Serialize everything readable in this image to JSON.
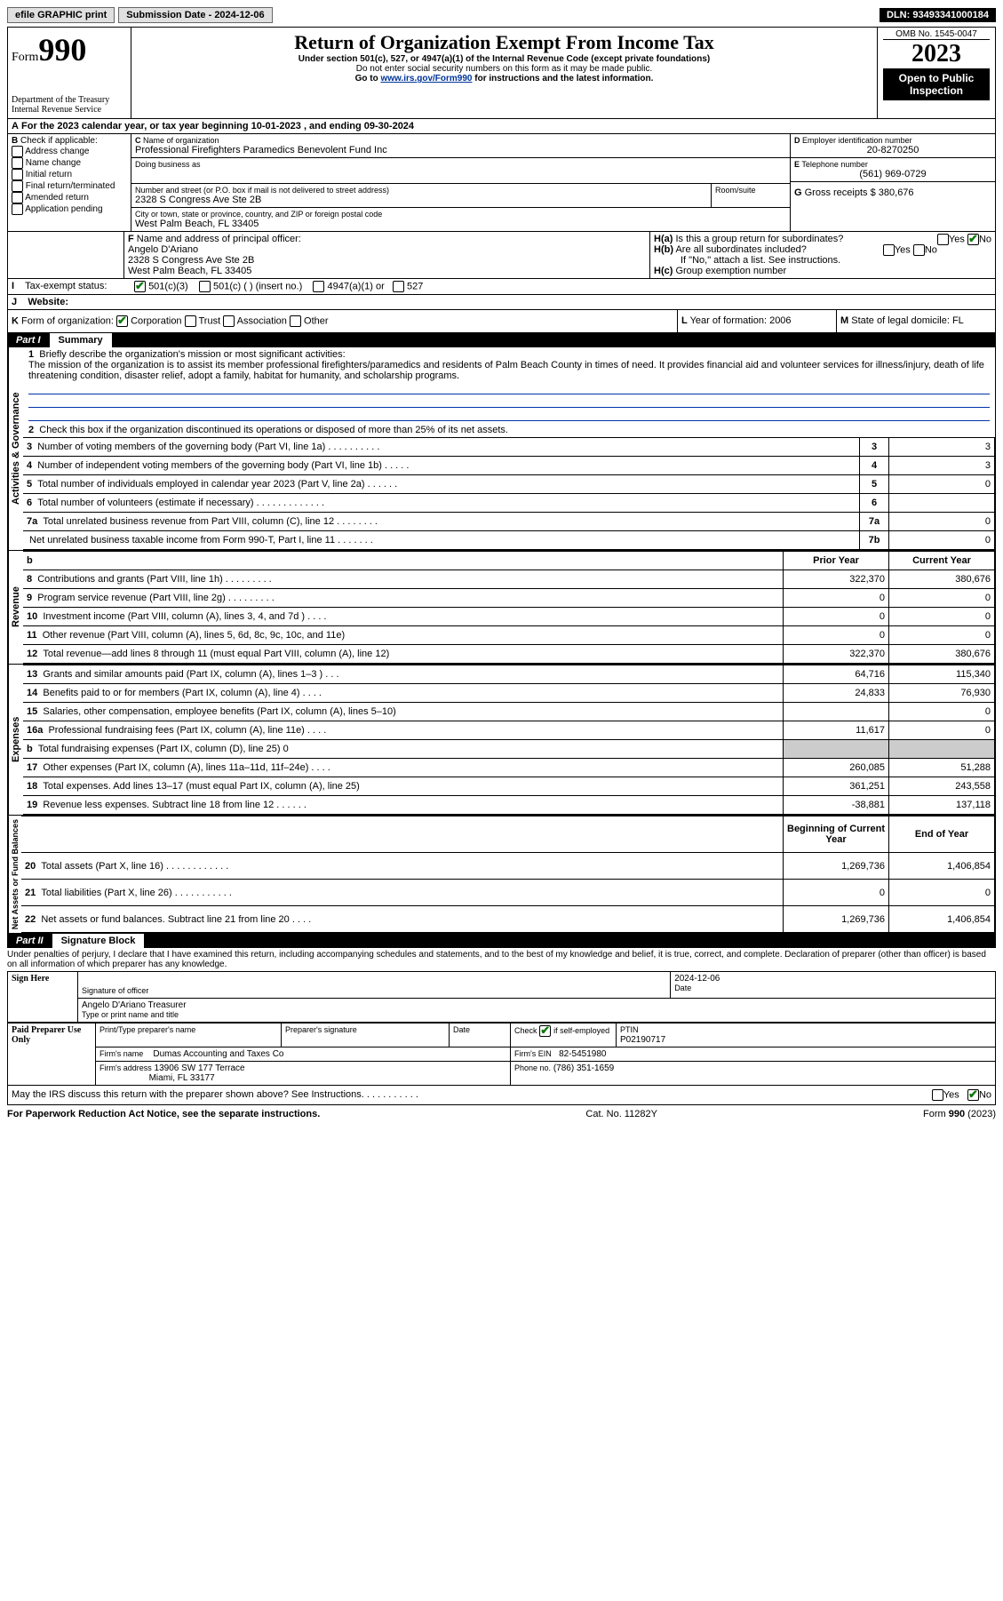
{
  "topbar": {
    "efile": "efile GRAPHIC print",
    "subdate_label": "Submission Date - 2024-12-06",
    "dln": "DLN: 93493341000184"
  },
  "header": {
    "form_label": "Form",
    "form_num": "990",
    "title": "Return of Organization Exempt From Income Tax",
    "sub1": "Under section 501(c), 527, or 4947(a)(1) of the Internal Revenue Code (except private foundations)",
    "sub2": "Do not enter social security numbers on this form as it may be made public.",
    "sub3_pre": "Go to ",
    "sub3_link": "www.irs.gov/Form990",
    "sub3_post": " for instructions and the latest information.",
    "dept": "Department of the Treasury\nInternal Revenue Service",
    "omb": "OMB No. 1545-0047",
    "year": "2023",
    "open": "Open to Public Inspection"
  },
  "A": {
    "line": "For the 2023 calendar year, or tax year beginning 10-01-2023   , and ending 09-30-2024"
  },
  "B": {
    "label": "Check if applicable:",
    "items": [
      "Address change",
      "Name change",
      "Initial return",
      "Final return/terminated",
      "Amended return",
      "Application pending"
    ]
  },
  "C": {
    "name_label": "Name of organization",
    "name": "Professional Firefighters Paramedics Benevolent Fund Inc",
    "dba_label": "Doing business as",
    "addr_label": "Number and street (or P.O. box if mail is not delivered to street address)",
    "room_label": "Room/suite",
    "addr": "2328 S Congress Ave Ste 2B",
    "city_label": "City or town, state or province, country, and ZIP or foreign postal code",
    "city": "West Palm Beach, FL  33405"
  },
  "D": {
    "label": "Employer identification number",
    "val": "20-8270250"
  },
  "E": {
    "label": "Telephone number",
    "val": "(561) 969-0729"
  },
  "G": {
    "label": "Gross receipts $",
    "val": "380,676"
  },
  "F": {
    "label": "Name and address of principal officer:",
    "name": "Angelo D'Ariano",
    "l1": "2328 S Congress Ave Ste 2B",
    "l2": "West Palm Beach, FL  33405"
  },
  "H": {
    "a": "Is this a group return for subordinates?",
    "b": "Are all subordinates included?",
    "b_note": "If \"No,\" attach a list. See instructions.",
    "c": "Group exemption number",
    "yes": "Yes",
    "no": "No"
  },
  "I": {
    "label": "Tax-exempt status:",
    "o1": "501(c)(3)",
    "o2": "501(c) (  ) (insert no.)",
    "o3": "4947(a)(1) or",
    "o4": "527"
  },
  "J": {
    "label": "Website:"
  },
  "K": {
    "label": "Form of organization:",
    "o1": "Corporation",
    "o2": "Trust",
    "o3": "Association",
    "o4": "Other"
  },
  "L": {
    "label": "Year of formation: 2006"
  },
  "M": {
    "label": "State of legal domicile: FL"
  },
  "part1": {
    "num": "Part I",
    "title": "Summary"
  },
  "sides": {
    "gov": "Activities & Governance",
    "rev": "Revenue",
    "exp": "Expenses",
    "net": "Net Assets or Fund Balances"
  },
  "s1": {
    "q1": "Briefly describe the organization's mission or most significant activities:",
    "mission": "The mission of the organization is to assist its member professional firefighters/paramedics and residents of Palm Beach County in times of need. It provides financial aid and volunteer services for illness/injury, death of life threatening condition, disaster relief, adopt a family, habitat for humanity, and scholarship programs.",
    "q2": "Check this box       if the organization discontinued its operations or disposed of more than 25% of its net assets.",
    "rows": [
      {
        "n": "3",
        "t": "Number of voting members of the governing body (Part VI, line 1a)   .    .    .    .    .    .    .    .    .    .",
        "lab": "3",
        "v": "3"
      },
      {
        "n": "4",
        "t": "Number of independent voting members of the governing body (Part VI, line 1b)    .    .    .    .    .",
        "lab": "4",
        "v": "3"
      },
      {
        "n": "5",
        "t": "Total number of individuals employed in calendar year 2023 (Part V, line 2a)  .    .    .    .    .    .",
        "lab": "5",
        "v": "0"
      },
      {
        "n": "6",
        "t": "Total number of volunteers (estimate if necessary)   .    .    .    .    .    .    .    .    .    .    .    .    .",
        "lab": "6",
        "v": ""
      },
      {
        "n": "7a",
        "t": "Total unrelated business revenue from Part VIII, column (C), line 12   .    .    .    .    .    .    .    .",
        "lab": "7a",
        "v": "0"
      },
      {
        "n": "",
        "t": "Net unrelated business taxable income from Form 990-T, Part I, line 11   .    .    .    .    .    .    .",
        "lab": "7b",
        "v": "0"
      }
    ]
  },
  "cols": {
    "prior": "Prior Year",
    "curr": "Current Year",
    "beg": "Beginning of Current Year",
    "end": "End of Year"
  },
  "rev": [
    {
      "n": "8",
      "t": "Contributions and grants (Part VIII, line 1h)    .    .    .    .    .    .    .    .    .",
      "p": "322,370",
      "c": "380,676"
    },
    {
      "n": "9",
      "t": "Program service revenue (Part VIII, line 2g)   .    .    .    .    .    .    .    .    .",
      "p": "0",
      "c": "0"
    },
    {
      "n": "10",
      "t": "Investment income (Part VIII, column (A), lines 3, 4, and 7d )   .    .    .    .",
      "p": "0",
      "c": "0"
    },
    {
      "n": "11",
      "t": "Other revenue (Part VIII, column (A), lines 5, 6d, 8c, 9c, 10c, and 11e)",
      "p": "0",
      "c": "0"
    },
    {
      "n": "12",
      "t": "Total revenue—add lines 8 through 11 (must equal Part VIII, column (A), line 12)",
      "p": "322,370",
      "c": "380,676"
    }
  ],
  "exp": [
    {
      "n": "13",
      "t": "Grants and similar amounts paid (Part IX, column (A), lines 1–3 )    .    .    .",
      "p": "64,716",
      "c": "115,340"
    },
    {
      "n": "14",
      "t": "Benefits paid to or for members (Part IX, column (A), line 4)   .    .    .    .",
      "p": "24,833",
      "c": "76,930"
    },
    {
      "n": "15",
      "t": "Salaries, other compensation, employee benefits (Part IX, column (A), lines 5–10)",
      "p": "",
      "c": "0"
    },
    {
      "n": "16a",
      "t": "Professional fundraising fees (Part IX, column (A), line 11e)    .    .    .    .",
      "p": "11,617",
      "c": "0"
    },
    {
      "n": "b",
      "t": "Total fundraising expenses (Part IX, column (D), line 25) 0",
      "p": "",
      "c": "",
      "blank": true
    },
    {
      "n": "17",
      "t": "Other expenses (Part IX, column (A), lines 11a–11d, 11f–24e)    .    .    .    .",
      "p": "260,085",
      "c": "51,288"
    },
    {
      "n": "18",
      "t": "Total expenses. Add lines 13–17 (must equal Part IX, column (A), line 25)",
      "p": "361,251",
      "c": "243,558"
    },
    {
      "n": "19",
      "t": "Revenue less expenses. Subtract line 18 from line 12   .    .    .    .    .    .",
      "p": "-38,881",
      "c": "137,118"
    }
  ],
  "net": [
    {
      "n": "20",
      "t": "Total assets (Part X, line 16)   .    .    .    .    .    .    .    .    .    .    .    .",
      "p": "1,269,736",
      "c": "1,406,854"
    },
    {
      "n": "21",
      "t": "Total liabilities (Part X, line 26)   .    .    .    .    .    .    .    .    .    .    .",
      "p": "0",
      "c": "0"
    },
    {
      "n": "22",
      "t": "Net assets or fund balances. Subtract line 21 from line 20    .    .    .    .",
      "p": "1,269,736",
      "c": "1,406,854"
    }
  ],
  "part2": {
    "num": "Part II",
    "title": "Signature Block"
  },
  "perjury": "Under penalties of perjury, I declare that I have examined this return, including accompanying schedules and statements, and to the best of my knowledge and belief, it is true, correct, and complete. Declaration of preparer (other than officer) is based on all information of which preparer has any knowledge.",
  "sign": {
    "here": "Sign Here",
    "sig_label": "Signature of officer",
    "name": "Angelo D'Ariano  Treasurer",
    "name_label": "Type or print name and title",
    "date_label": "Date",
    "date": "2024-12-06"
  },
  "prep": {
    "title": "Paid Preparer Use Only",
    "c1": "Print/Type preparer's name",
    "c2": "Preparer's signature",
    "c3": "Date",
    "c4a": "Check",
    "c4b": "if self-employed",
    "ptin_l": "PTIN",
    "ptin": "P02190717",
    "firm_l": "Firm's name",
    "firm": "Dumas Accounting and Taxes Co",
    "ein_l": "Firm's EIN",
    "ein": "82-5451980",
    "addr_l": "Firm's address",
    "addr1": "13906 SW 177 Terrace",
    "addr2": "Miami, FL  33177",
    "phone_l": "Phone no.",
    "phone": "(786) 351-1659"
  },
  "discuss": "May the IRS discuss this return with the preparer shown above? See Instructions.    .    .    .    .    .    .    .    .    .    .",
  "footer": {
    "pra": "For Paperwork Reduction Act Notice, see the separate instructions.",
    "cat": "Cat. No. 11282Y",
    "form": "Form 990 (2023)"
  }
}
